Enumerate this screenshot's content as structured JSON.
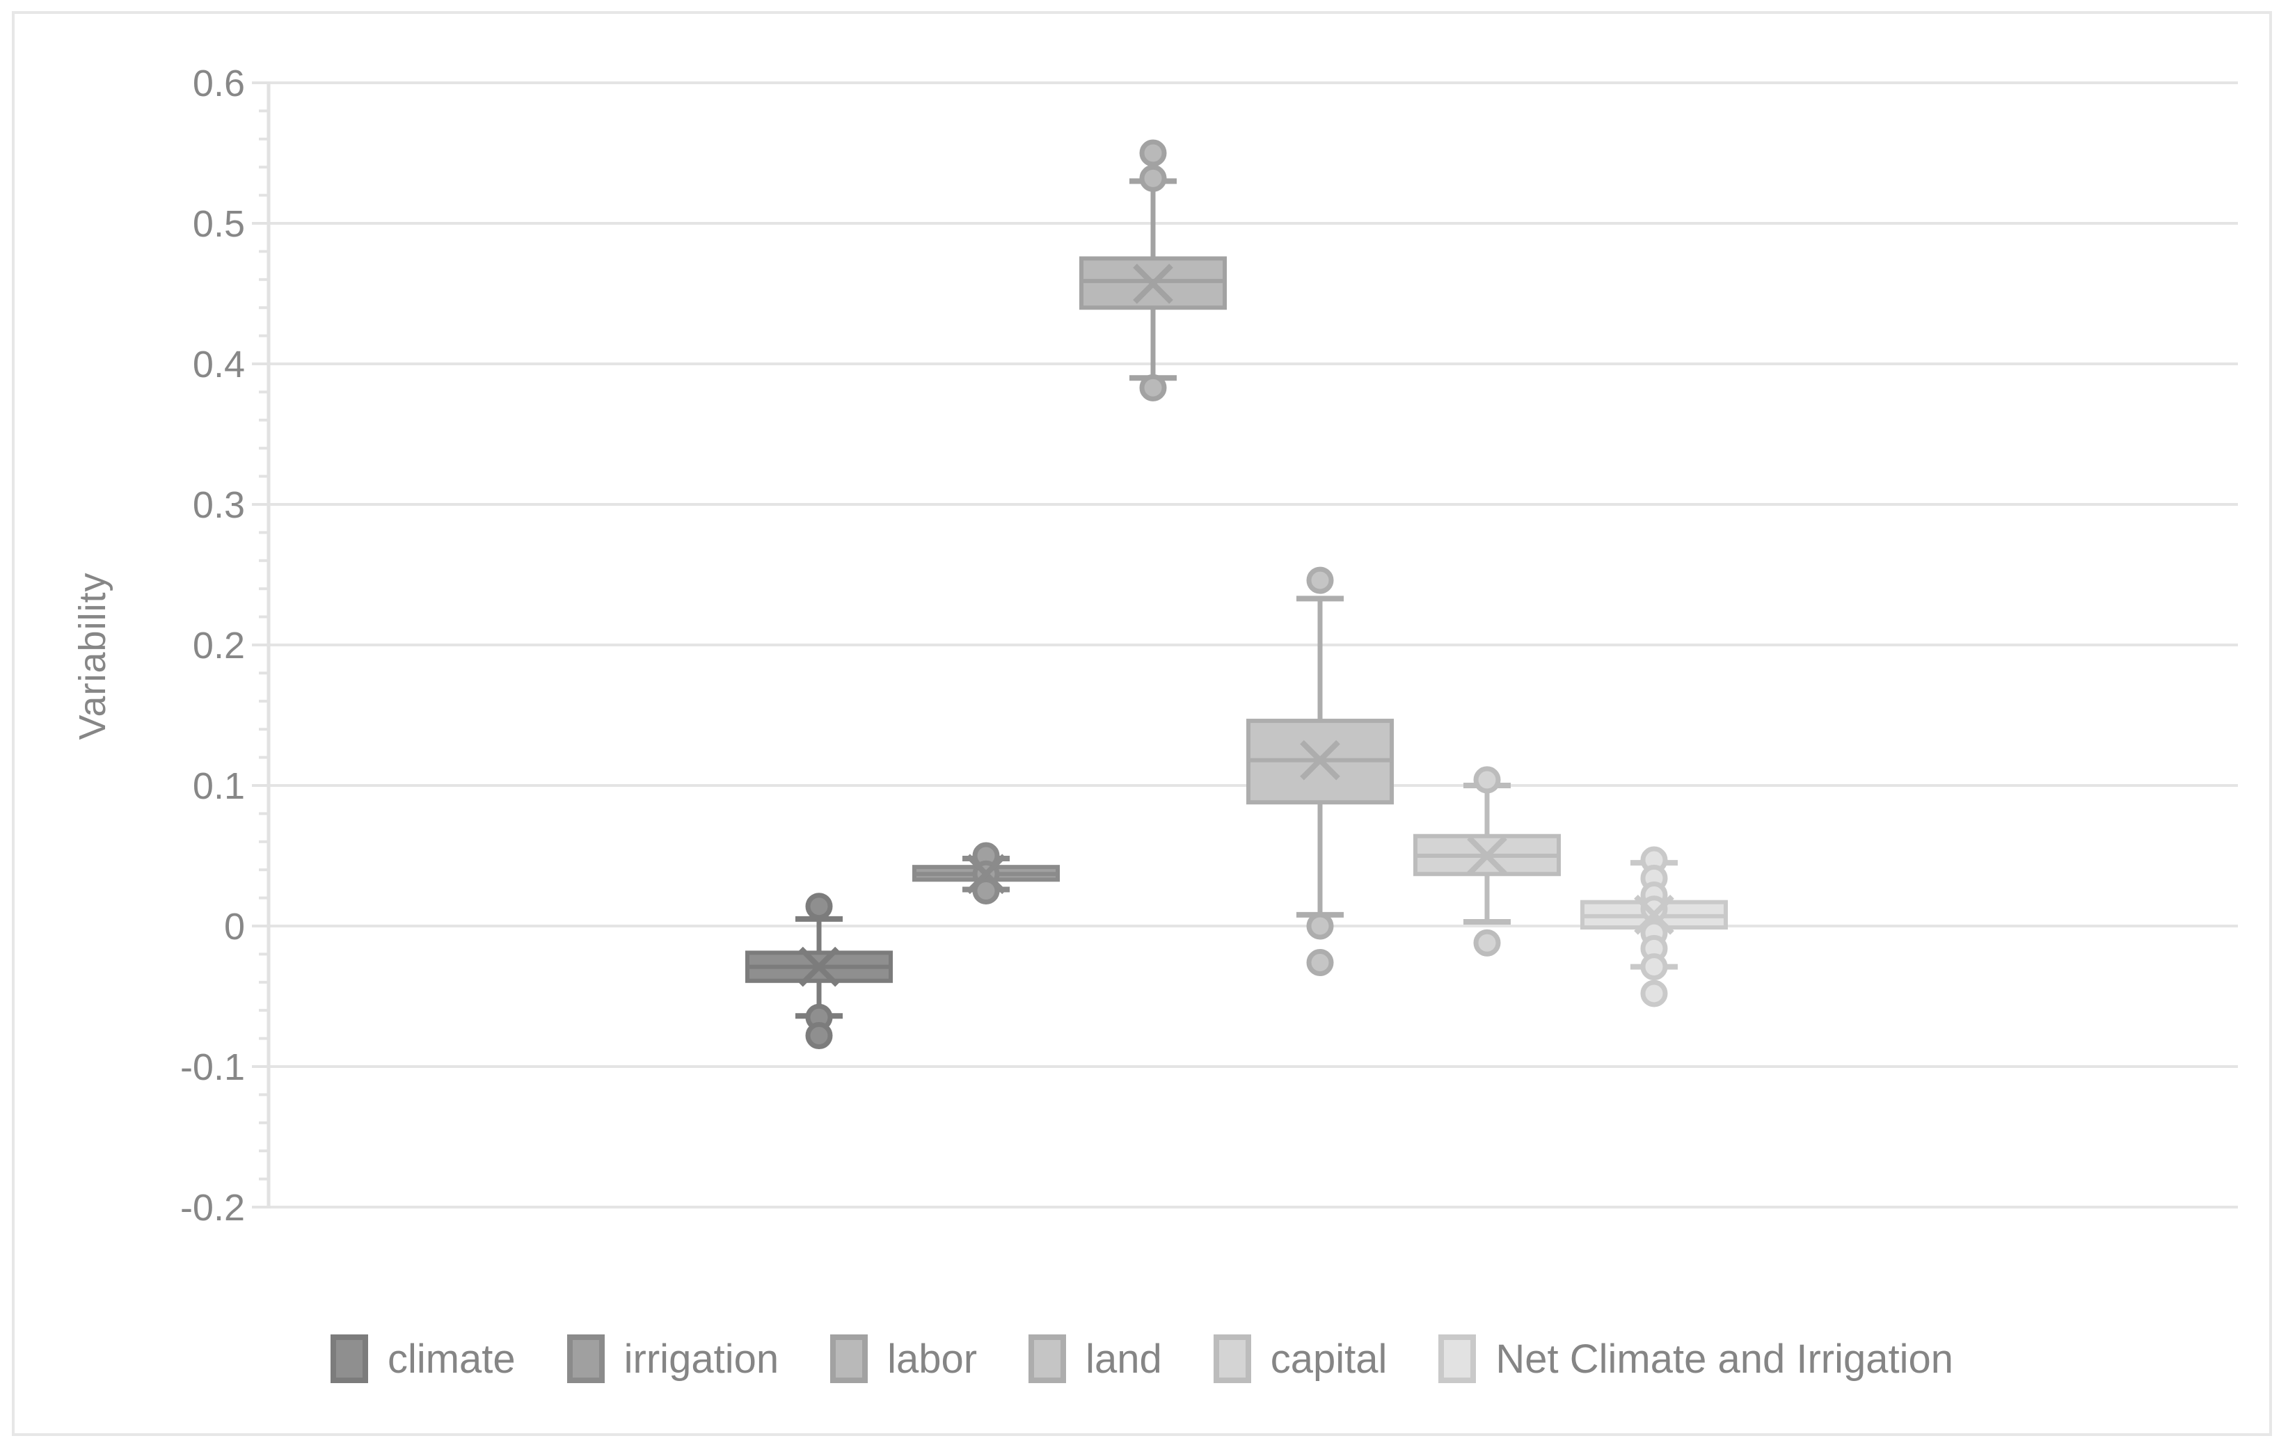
{
  "figure": {
    "background": "#ffffff",
    "border_color": "#e7e7e7"
  },
  "colors": {
    "gridline": "#e4e4e4",
    "axis_line": "#e2e2e2",
    "tick": "#e2e2e2",
    "tick_label_text": "#878787",
    "axis_title_text": "#868686",
    "legend_text": "#858585"
  },
  "chart_data": {
    "type": "box",
    "title": "",
    "xlabel": "",
    "ylabel": "Variability",
    "ylim": [
      -0.2,
      0.6
    ],
    "grid": true,
    "legend_position": "bottom",
    "minor_tick_interval": 0.02,
    "yticks": [
      {
        "v": 0.6,
        "label": "0.6"
      },
      {
        "v": 0.5,
        "label": "0.5"
      },
      {
        "v": 0.4,
        "label": "0.4"
      },
      {
        "v": 0.3,
        "label": "0.3"
      },
      {
        "v": 0.2,
        "label": "0.2"
      },
      {
        "v": 0.1,
        "label": "0.1"
      },
      {
        "v": 0.0,
        "label": "0"
      },
      {
        "v": -0.1,
        "label": "-0.1"
      },
      {
        "v": -0.2,
        "label": "-0.2"
      }
    ],
    "series": [
      {
        "name": "climate",
        "fill": "#8f8f8f",
        "line": "#7c7c7c",
        "whisker_low": -0.064,
        "q1": -0.039,
        "median": -0.029,
        "mean": -0.029,
        "q3": -0.019,
        "whisker_high": 0.005,
        "outliers": [
          0.014,
          -0.065,
          -0.078
        ]
      },
      {
        "name": "irrigation",
        "fill": "#a0a0a0",
        "line": "#8b8b8b",
        "whisker_low": 0.026,
        "q1": 0.033,
        "median": 0.037,
        "mean": 0.037,
        "q3": 0.042,
        "whisker_high": 0.048,
        "outliers": [
          0.05,
          0.037,
          0.025
        ]
      },
      {
        "name": "labor",
        "fill": "#b9b9b9",
        "line": "#a2a2a2",
        "whisker_low": 0.39,
        "q1": 0.44,
        "median": 0.459,
        "mean": 0.457,
        "q3": 0.475,
        "whisker_high": 0.53,
        "outliers": [
          0.55,
          0.532,
          0.383
        ]
      },
      {
        "name": "land",
        "fill": "#c5c5c5",
        "line": "#adadad",
        "whisker_low": 0.008,
        "q1": 0.088,
        "median": 0.118,
        "mean": 0.118,
        "q3": 0.146,
        "whisker_high": 0.233,
        "outliers": [
          0.246,
          0.0,
          -0.026
        ]
      },
      {
        "name": "capital",
        "fill": "#d4d4d4",
        "line": "#bcbcbc",
        "whisker_low": 0.003,
        "q1": 0.037,
        "median": 0.05,
        "mean": 0.05,
        "q3": 0.064,
        "whisker_high": 0.1,
        "outliers": [
          0.104,
          -0.012
        ]
      },
      {
        "name": "Net Climate and Irrigation",
        "fill": "#e2e2e2",
        "line": "#c9c9c9",
        "whisker_low": -0.029,
        "q1": -0.001,
        "median": 0.007,
        "mean": 0.008,
        "q3": 0.017,
        "whisker_high": 0.045,
        "outliers": [
          0.047,
          0.034,
          0.022,
          0.012,
          -0.005,
          -0.016,
          -0.029,
          -0.048
        ]
      }
    ]
  }
}
